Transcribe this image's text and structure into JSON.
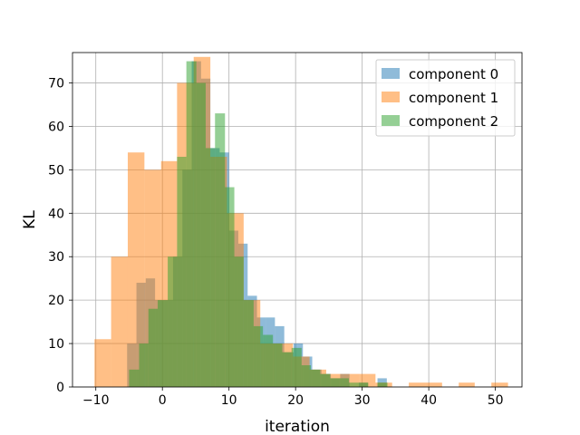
{
  "chart_data": {
    "type": "histogram",
    "xlabel": "iteration",
    "ylabel": "KL",
    "xlim": [
      -13.5,
      54.0
    ],
    "ylim": [
      0,
      77
    ],
    "xticks": [
      -10,
      0,
      10,
      20,
      30,
      40,
      50
    ],
    "yticks": [
      0,
      10,
      20,
      30,
      40,
      50,
      60,
      70
    ],
    "grid": true,
    "legend_position": "top-right",
    "series": [
      {
        "name": "component 0",
        "color": "#1f77b4",
        "opacity": 0.5,
        "bins": [
          [
            -5.3,
            -3.9,
            10
          ],
          [
            -3.9,
            -2.5,
            24
          ],
          [
            -2.5,
            -1.1,
            25
          ],
          [
            -1.1,
            0.3,
            20
          ],
          [
            0.3,
            1.6,
            20
          ],
          [
            1.6,
            3.0,
            30
          ],
          [
            3.0,
            4.4,
            50
          ],
          [
            4.4,
            5.8,
            75
          ],
          [
            5.8,
            7.2,
            71
          ],
          [
            7.2,
            8.6,
            55
          ],
          [
            8.6,
            10.0,
            54
          ],
          [
            10.0,
            11.4,
            36
          ],
          [
            11.4,
            12.8,
            33
          ],
          [
            12.8,
            14.2,
            21
          ],
          [
            14.2,
            15.5,
            16
          ],
          [
            15.5,
            16.9,
            16
          ],
          [
            16.9,
            18.3,
            14
          ],
          [
            18.3,
            19.7,
            8
          ],
          [
            19.7,
            21.1,
            10
          ],
          [
            21.1,
            22.5,
            7
          ],
          [
            22.5,
            23.9,
            4
          ],
          [
            23.9,
            25.3,
            3
          ],
          [
            25.3,
            26.7,
            2
          ],
          [
            26.7,
            28.1,
            3
          ],
          [
            28.1,
            29.5,
            0
          ],
          [
            29.5,
            30.9,
            1
          ],
          [
            30.9,
            32.3,
            0
          ],
          [
            32.3,
            33.7,
            2
          ]
        ]
      },
      {
        "name": "component 1",
        "color": "#ff7f0e",
        "opacity": 0.5,
        "bins": [
          [
            -10.2,
            -7.7,
            11
          ],
          [
            -7.7,
            -5.2,
            30
          ],
          [
            -5.2,
            -2.7,
            54
          ],
          [
            -2.7,
            -0.2,
            50
          ],
          [
            -0.2,
            2.2,
            52
          ],
          [
            2.2,
            4.7,
            70
          ],
          [
            4.7,
            7.2,
            76
          ],
          [
            7.2,
            9.7,
            53
          ],
          [
            9.7,
            12.2,
            40
          ],
          [
            12.2,
            14.7,
            20
          ],
          [
            14.7,
            17.1,
            10
          ],
          [
            17.1,
            19.6,
            10
          ],
          [
            19.6,
            22.1,
            7
          ],
          [
            22.1,
            24.6,
            4
          ],
          [
            24.6,
            27.1,
            3
          ],
          [
            27.1,
            29.6,
            3
          ],
          [
            29.6,
            32.0,
            3
          ],
          [
            32.0,
            34.5,
            1
          ],
          [
            34.5,
            37.0,
            0
          ],
          [
            37.0,
            39.5,
            1
          ],
          [
            39.5,
            42.0,
            1
          ],
          [
            42.0,
            44.5,
            0
          ],
          [
            44.5,
            46.9,
            1
          ],
          [
            46.9,
            49.4,
            0
          ],
          [
            49.4,
            51.9,
            1
          ]
        ]
      },
      {
        "name": "component 2",
        "color": "#2ca02c",
        "opacity": 0.5,
        "bins": [
          [
            -5.0,
            -3.5,
            4
          ],
          [
            -3.5,
            -2.1,
            10
          ],
          [
            -2.1,
            -0.7,
            18
          ],
          [
            -0.7,
            0.8,
            20
          ],
          [
            0.8,
            2.2,
            30
          ],
          [
            2.2,
            3.6,
            53
          ],
          [
            3.6,
            5.1,
            75
          ],
          [
            5.1,
            6.5,
            70
          ],
          [
            6.5,
            7.9,
            55
          ],
          [
            7.9,
            9.4,
            63
          ],
          [
            9.4,
            10.8,
            46
          ],
          [
            10.8,
            12.2,
            30
          ],
          [
            12.2,
            13.7,
            20
          ],
          [
            13.7,
            15.1,
            14
          ],
          [
            15.1,
            16.6,
            12
          ],
          [
            16.6,
            18.0,
            10
          ],
          [
            18.0,
            19.4,
            8
          ],
          [
            19.4,
            20.9,
            9
          ],
          [
            20.9,
            22.3,
            5
          ],
          [
            22.3,
            23.7,
            4
          ],
          [
            23.7,
            25.2,
            3
          ],
          [
            25.2,
            26.6,
            2
          ],
          [
            26.6,
            28.0,
            2
          ],
          [
            28.0,
            29.5,
            1
          ],
          [
            29.5,
            30.9,
            1
          ],
          [
            30.9,
            32.3,
            0
          ],
          [
            32.3,
            33.8,
            1
          ]
        ]
      }
    ]
  }
}
